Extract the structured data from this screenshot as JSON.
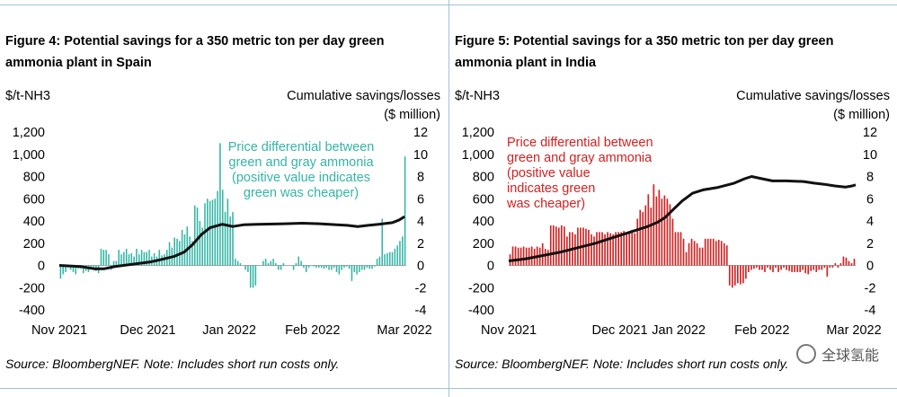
{
  "chart_data": [
    {
      "type": "bar",
      "figure_label": "Figure 4:",
      "title": "Potential savings for a 350 metric ton per day green ammonia plant in Spain",
      "ylabel": "$/t-NH3",
      "y2label": "Cumulative savings/losses ($ million)",
      "ylim": [
        -400,
        1200
      ],
      "y2lim": [
        -4,
        12
      ],
      "y_ticks": [
        "1,200",
        "1,000",
        "800",
        "600",
        "400",
        "200",
        "0",
        "-200",
        "-400"
      ],
      "y2_ticks": [
        "12",
        "10",
        "8",
        "6",
        "4",
        "2",
        "0",
        "-2",
        "-4"
      ],
      "x_ticks": [
        "Nov 2021",
        "Dec 2021",
        "Jan 2022",
        "Feb 2022",
        "Mar 2022"
      ],
      "annotation": "Price differential between green and gray ammonia (positive value indicates green was cheaper)",
      "bar_color": "#33b5a5",
      "line_color": "#111111",
      "bars": [
        -120,
        -80,
        -60,
        -20,
        -40,
        -60,
        -80,
        -30,
        -30,
        -70,
        -50,
        -60,
        -20,
        -20,
        -50,
        -70,
        150,
        140,
        140,
        100,
        -40,
        40,
        40,
        140,
        100,
        120,
        150,
        100,
        110,
        80,
        150,
        100,
        140,
        120,
        120,
        140,
        80,
        110,
        80,
        140,
        90,
        100,
        140,
        210,
        160,
        250,
        240,
        220,
        320,
        280,
        350,
        260,
        220,
        540,
        520,
        400,
        340,
        560,
        600,
        580,
        590,
        600,
        670,
        1100,
        680,
        480,
        600,
        440,
        480,
        60,
        40,
        20,
        0,
        -40,
        -60,
        -200,
        -200,
        -180,
        0,
        0,
        40,
        60,
        20,
        40,
        60,
        20,
        -40,
        -40,
        20,
        0,
        0,
        0,
        -40,
        20,
        80,
        40,
        -20,
        -60,
        -20,
        0,
        -10,
        -20,
        -20,
        -20,
        -30,
        -20,
        -40,
        -40,
        -20,
        -60,
        -80,
        -40,
        -20,
        -10,
        -30,
        -140,
        -60,
        -80,
        -60,
        -40,
        -40,
        -20,
        -30,
        -30,
        -10,
        60,
        80,
        420,
        100,
        110,
        120,
        120,
        150,
        180,
        220,
        260,
        980
      ],
      "line": [
        [
          0,
          0
        ],
        [
          0.06,
          -0.1
        ],
        [
          0.1,
          -0.3
        ],
        [
          0.13,
          -0.3
        ],
        [
          0.16,
          -0.1
        ],
        [
          0.21,
          0.1
        ],
        [
          0.26,
          0.3
        ],
        [
          0.29,
          0.5
        ],
        [
          0.33,
          0.8
        ],
        [
          0.36,
          1.2
        ],
        [
          0.385,
          1.9
        ],
        [
          0.41,
          2.8
        ],
        [
          0.435,
          3.4
        ],
        [
          0.47,
          3.7
        ],
        [
          0.5,
          3.5
        ],
        [
          0.53,
          3.65
        ],
        [
          0.57,
          3.7
        ],
        [
          0.65,
          3.75
        ],
        [
          0.7,
          3.8
        ],
        [
          0.75,
          3.75
        ],
        [
          0.8,
          3.65
        ],
        [
          0.83,
          3.6
        ],
        [
          0.86,
          3.5
        ],
        [
          0.89,
          3.6
        ],
        [
          0.92,
          3.7
        ],
        [
          0.96,
          3.85
        ],
        [
          0.98,
          4.1
        ],
        [
          0.995,
          4.4
        ]
      ]
    },
    {
      "type": "bar",
      "figure_label": "Figure 5:",
      "title": "Potential savings for a 350 metric ton per day green ammonia plant in India",
      "ylabel": "$/t-NH3",
      "y2label": "Cumulative savings/losses ($ million)",
      "ylim": [
        -400,
        1200
      ],
      "y2lim": [
        -4,
        12
      ],
      "y_ticks": [
        "1,200",
        "1,000",
        "800",
        "600",
        "400",
        "200",
        "0",
        "-200",
        "-400"
      ],
      "y2_ticks": [
        "12",
        "10",
        "8",
        "6",
        "4",
        "2",
        "0",
        "-2",
        "-4"
      ],
      "x_ticks": [
        "Nov 2021",
        "Dec 2021",
        "Jan 2022",
        "Feb 2022",
        "Mar 2022"
      ],
      "annotation": "Price differential between green and gray ammonia (positive value indicates green was cheaper)",
      "bar_color": "#d42020",
      "line_color": "#111111",
      "bars": [
        100,
        170,
        170,
        160,
        160,
        170,
        160,
        160,
        170,
        150,
        170,
        160,
        200,
        150,
        140,
        360,
        360,
        350,
        340,
        360,
        350,
        260,
        300,
        300,
        280,
        340,
        340,
        340,
        330,
        320,
        280,
        260,
        300,
        300,
        300,
        280,
        300,
        290,
        280,
        300,
        300,
        300,
        310,
        280,
        290,
        320,
        290,
        420,
        500,
        480,
        540,
        640,
        520,
        730,
        620,
        680,
        600,
        630,
        600,
        550,
        420,
        300,
        300,
        300,
        240,
        120,
        200,
        240,
        220,
        200,
        160,
        160,
        240,
        240,
        240,
        240,
        220,
        230,
        220,
        200,
        180,
        -180,
        -200,
        -180,
        -160,
        -170,
        -160,
        -120,
        -60,
        -40,
        -30,
        -20,
        -40,
        -40,
        -60,
        -20,
        -40,
        -60,
        -20,
        -60,
        -40,
        -20,
        -40,
        -50,
        -60,
        -60,
        -60,
        -60,
        -40,
        -70,
        -80,
        -50,
        -40,
        -60,
        -40,
        -40,
        -20,
        -100,
        -20,
        -20,
        20,
        -20,
        20,
        80,
        70,
        40,
        20,
        60
      ],
      "line": [
        [
          0,
          0.4
        ],
        [
          0.05,
          0.6
        ],
        [
          0.1,
          0.9
        ],
        [
          0.15,
          1.2
        ],
        [
          0.2,
          1.6
        ],
        [
          0.25,
          2.0
        ],
        [
          0.3,
          2.5
        ],
        [
          0.35,
          3.0
        ],
        [
          0.4,
          3.5
        ],
        [
          0.43,
          3.9
        ],
        [
          0.45,
          4.3
        ],
        [
          0.48,
          5.2
        ],
        [
          0.5,
          5.8
        ],
        [
          0.53,
          6.5
        ],
        [
          0.56,
          6.8
        ],
        [
          0.6,
          7.0
        ],
        [
          0.65,
          7.4
        ],
        [
          0.68,
          7.8
        ],
        [
          0.7,
          8.0
        ],
        [
          0.73,
          7.8
        ],
        [
          0.76,
          7.6
        ],
        [
          0.8,
          7.6
        ],
        [
          0.85,
          7.55
        ],
        [
          0.88,
          7.4
        ],
        [
          0.91,
          7.3
        ],
        [
          0.94,
          7.15
        ],
        [
          0.97,
          7.05
        ],
        [
          0.99,
          7.15
        ],
        [
          1.0,
          7.25
        ]
      ]
    }
  ],
  "sources": [
    "Source: BloombergNEF. Note: Includes short run costs only.",
    "Source: BloombergNEF. Note: Includes short run costs only."
  ],
  "watermark": "全球氢能"
}
